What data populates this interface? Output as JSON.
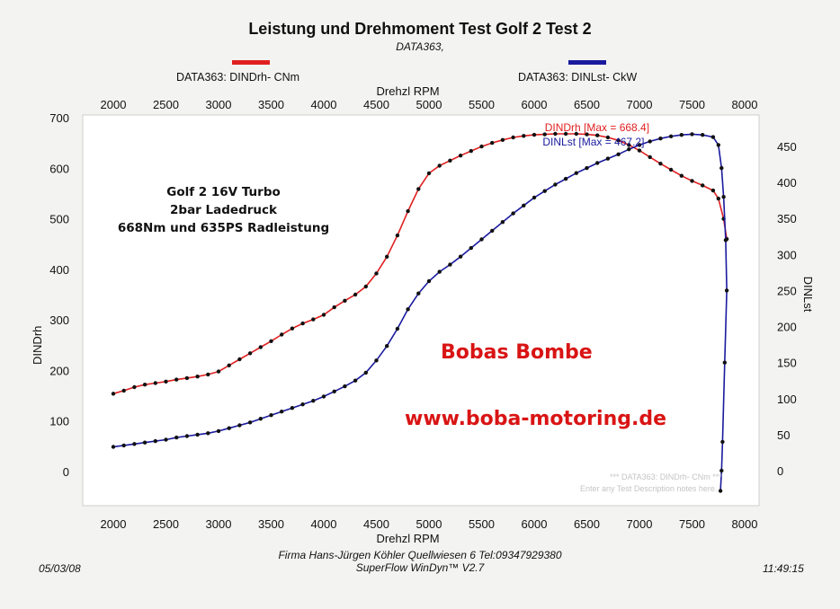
{
  "header": {
    "title": "Leistung und Drehmoment Test Golf 2 Test 2",
    "subtitle": "DATA363,"
  },
  "legend": [
    {
      "label": "DATA363: DINDrh- CNm",
      "color": "#e02020"
    },
    {
      "label": "DATA363: DINLst- CkW",
      "color": "#1a1a9e"
    }
  ],
  "annotations": {
    "note_lines": [
      "Golf 2 16V Turbo",
      "2bar Ladedruck",
      "668Nm und 635PS Radleistung"
    ],
    "promo_title": "Bobas Bombe",
    "promo_url": "www.boba-motoring.de",
    "max_torque": "DINDrh [Max = 668.4]",
    "max_power": "DINLst [Max = 467.2]",
    "watermark_line1": "*** DATA363: DINDrh- CNm ***",
    "watermark_line2": "Enter any Test Description notes here."
  },
  "footer": {
    "date": "05/03/08",
    "time": "11:49:15",
    "company": "Firma Hans-Jürgen Köhler Quellwiesen 6 Tel:09347929380",
    "software": "SuperFlow WinDyn™ V2.7"
  },
  "chart_data": {
    "type": "line",
    "title": "Leistung und Drehmoment Test Golf 2 Test 2",
    "xlabel": "Drehzl  RPM",
    "x_top_label": "Drehzl  RPM",
    "ylabel_left": "DINDrh",
    "ylabel_right": "DINLst",
    "xlim": [
      1900,
      8100
    ],
    "ylim_left": [
      -50,
      700
    ],
    "ylim_right": [
      -40,
      480
    ],
    "x_ticks": [
      2000,
      2500,
      3000,
      3500,
      4000,
      4500,
      5000,
      5500,
      6000,
      6500,
      7000,
      7500,
      8000
    ],
    "y_left_ticks": [
      0,
      100,
      200,
      300,
      400,
      500,
      600,
      700
    ],
    "y_right_ticks": [
      0,
      50,
      100,
      150,
      200,
      250,
      300,
      350,
      400,
      450
    ],
    "series": [
      {
        "name": "DATA363: DINDrh- CNm",
        "axis": "left",
        "color": "#e02020",
        "points": [
          [
            2000,
            154
          ],
          [
            2100,
            160
          ],
          [
            2200,
            167
          ],
          [
            2300,
            172
          ],
          [
            2400,
            175
          ],
          [
            2500,
            178
          ],
          [
            2600,
            182
          ],
          [
            2700,
            185
          ],
          [
            2800,
            188
          ],
          [
            2900,
            192
          ],
          [
            3000,
            198
          ],
          [
            3100,
            210
          ],
          [
            3200,
            222
          ],
          [
            3300,
            234
          ],
          [
            3400,
            246
          ],
          [
            3500,
            258
          ],
          [
            3600,
            271
          ],
          [
            3700,
            283
          ],
          [
            3800,
            293
          ],
          [
            3900,
            301
          ],
          [
            4000,
            310
          ],
          [
            4100,
            325
          ],
          [
            4200,
            338
          ],
          [
            4300,
            350
          ],
          [
            4400,
            366
          ],
          [
            4500,
            392
          ],
          [
            4600,
            425
          ],
          [
            4700,
            467
          ],
          [
            4800,
            515
          ],
          [
            4900,
            559
          ],
          [
            5000,
            590
          ],
          [
            5100,
            605
          ],
          [
            5200,
            615
          ],
          [
            5300,
            625
          ],
          [
            5400,
            634
          ],
          [
            5500,
            643
          ],
          [
            5600,
            650
          ],
          [
            5700,
            656
          ],
          [
            5800,
            661
          ],
          [
            5900,
            664
          ],
          [
            6000,
            666
          ],
          [
            6100,
            667
          ],
          [
            6200,
            668
          ],
          [
            6300,
            668
          ],
          [
            6400,
            668
          ],
          [
            6500,
            667
          ],
          [
            6600,
            665
          ],
          [
            6700,
            661
          ],
          [
            6800,
            655
          ],
          [
            6900,
            646
          ],
          [
            7000,
            635
          ],
          [
            7100,
            622
          ],
          [
            7200,
            609
          ],
          [
            7300,
            597
          ],
          [
            7400,
            585
          ],
          [
            7500,
            575
          ],
          [
            7600,
            566
          ],
          [
            7700,
            556
          ],
          [
            7750,
            540
          ],
          [
            7800,
            500
          ],
          [
            7830,
            460
          ]
        ]
      },
      {
        "name": "DATA363: DINLst- CkW",
        "axis": "right",
        "color": "#1a1a9e",
        "points": [
          [
            2000,
            33
          ],
          [
            2100,
            35
          ],
          [
            2200,
            37
          ],
          [
            2300,
            39
          ],
          [
            2400,
            41
          ],
          [
            2500,
            43
          ],
          [
            2600,
            46
          ],
          [
            2700,
            48
          ],
          [
            2800,
            50
          ],
          [
            2900,
            52
          ],
          [
            3000,
            55
          ],
          [
            3100,
            59
          ],
          [
            3200,
            63
          ],
          [
            3300,
            67
          ],
          [
            3400,
            72
          ],
          [
            3500,
            77
          ],
          [
            3600,
            82
          ],
          [
            3700,
            87
          ],
          [
            3800,
            92
          ],
          [
            3900,
            97
          ],
          [
            4000,
            103
          ],
          [
            4100,
            110
          ],
          [
            4200,
            117
          ],
          [
            4300,
            125
          ],
          [
            4400,
            136
          ],
          [
            4500,
            153
          ],
          [
            4600,
            173
          ],
          [
            4700,
            197
          ],
          [
            4800,
            224
          ],
          [
            4900,
            246
          ],
          [
            5000,
            263
          ],
          [
            5100,
            276
          ],
          [
            5200,
            286
          ],
          [
            5300,
            297
          ],
          [
            5400,
            309
          ],
          [
            5500,
            321
          ],
          [
            5600,
            333
          ],
          [
            5700,
            345
          ],
          [
            5800,
            357
          ],
          [
            5900,
            368
          ],
          [
            6000,
            379
          ],
          [
            6100,
            388
          ],
          [
            6200,
            397
          ],
          [
            6300,
            405
          ],
          [
            6400,
            413
          ],
          [
            6500,
            420
          ],
          [
            6600,
            427
          ],
          [
            6700,
            433
          ],
          [
            6800,
            439
          ],
          [
            6900,
            446
          ],
          [
            7000,
            452
          ],
          [
            7100,
            457
          ],
          [
            7200,
            461
          ],
          [
            7300,
            464
          ],
          [
            7400,
            466
          ],
          [
            7500,
            467
          ],
          [
            7600,
            466
          ],
          [
            7700,
            463
          ],
          [
            7750,
            452
          ],
          [
            7780,
            420
          ],
          [
            7800,
            380
          ],
          [
            7820,
            320
          ],
          [
            7830,
            250
          ],
          [
            7810,
            150
          ],
          [
            7790,
            40
          ],
          [
            7780,
            0
          ],
          [
            7770,
            -28
          ]
        ]
      }
    ],
    "grid": false,
    "legend_position": "top"
  }
}
